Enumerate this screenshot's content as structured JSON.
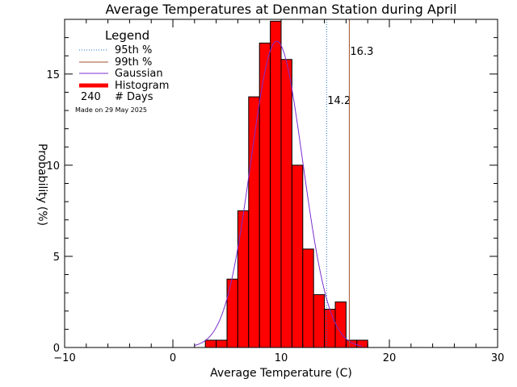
{
  "chart_data": {
    "type": "bar",
    "title": "Average Temperatures at Denman Station during April",
    "xlabel": "Average Temperature (C)",
    "ylabel": "Probability",
    "ylabel_unit": "(%)",
    "xlim": [
      -10,
      30
    ],
    "ylim": [
      0,
      18
    ],
    "xticks": [
      -10,
      0,
      10,
      20,
      30
    ],
    "xtick_labels": [
      "−10",
      "0",
      "10",
      "20",
      "30"
    ],
    "yticks": [
      0,
      5,
      10,
      15
    ],
    "yticks_labels": [
      "0",
      "5",
      "10",
      "15"
    ],
    "bin_width": 1,
    "bins": [
      {
        "x0": 3,
        "value": 0.4
      },
      {
        "x0": 4,
        "value": 0.4
      },
      {
        "x0": 5,
        "value": 3.75
      },
      {
        "x0": 6,
        "value": 7.5
      },
      {
        "x0": 7,
        "value": 13.75
      },
      {
        "x0": 8,
        "value": 16.7
      },
      {
        "x0": 9,
        "value": 17.9
      },
      {
        "x0": 10,
        "value": 15.8
      },
      {
        "x0": 11,
        "value": 10.0
      },
      {
        "x0": 12,
        "value": 5.4
      },
      {
        "x0": 13,
        "value": 2.9
      },
      {
        "x0": 14,
        "value": 2.1
      },
      {
        "x0": 15,
        "value": 2.5
      },
      {
        "x0": 16,
        "value": 0.4
      },
      {
        "x0": 17,
        "value": 0.4
      }
    ],
    "gaussian": {
      "mean": 9.6,
      "sd": 2.4,
      "peak": 16.8,
      "x_range": [
        2,
        17.5
      ]
    },
    "percentiles": [
      {
        "name": "95th %",
        "value": 14.2,
        "label": "14.2",
        "color": "#1e6fc8",
        "style": "dotted"
      },
      {
        "name": "99th %",
        "value": 16.3,
        "label": "16.3",
        "color": "#a0522d",
        "style": "solid"
      }
    ],
    "legend": {
      "title": "Legend",
      "placement": "top-left",
      "entries": [
        {
          "label": "95th %",
          "color": "#1e6fc8",
          "style": "dotted"
        },
        {
          "label": "99th %",
          "color": "#a0522d",
          "style": "solid"
        },
        {
          "label": "Gaussian",
          "color": "#7b2fd0",
          "style": "solid"
        },
        {
          "label": "Histogram",
          "color": "#ff0000",
          "style": "thick"
        }
      ],
      "count_value": "240",
      "count_label": "# Days"
    },
    "credit": "Made on 29 May 2025",
    "colors": {
      "bars": "#ff0000",
      "bar_outline": "#000000",
      "gaussian": "#7b2fd0",
      "p95": "#1e6fc8",
      "p99": "#a0522d",
      "credit": "#bbbbbb"
    }
  }
}
